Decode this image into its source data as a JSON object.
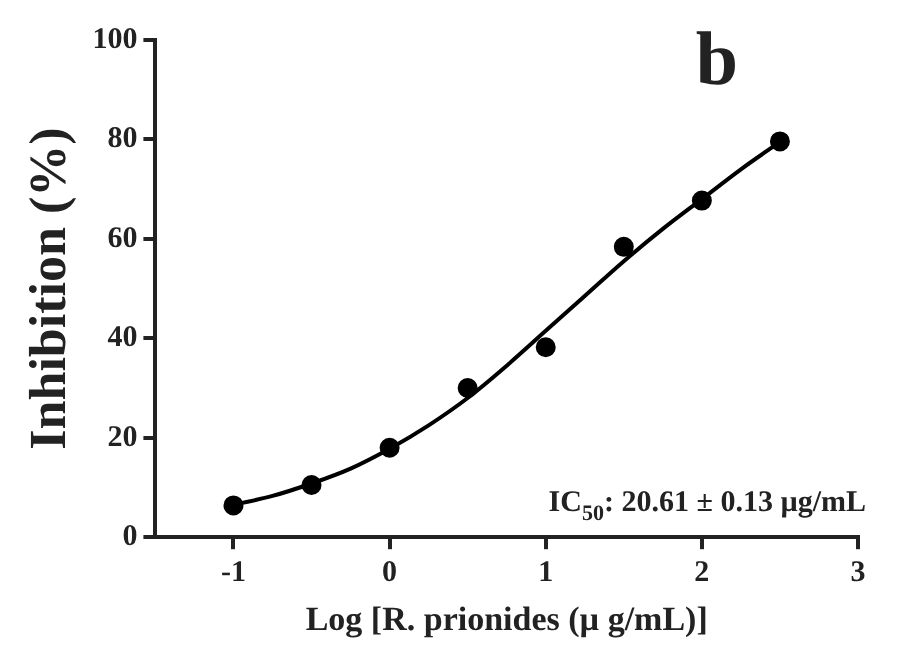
{
  "chart_data": {
    "type": "scatter",
    "xlabel": "Log [R. prionides (µ g/mL)]",
    "ylabel": "Inhibition (%)",
    "xlim": [
      -1.5,
      3
    ],
    "xticks": [
      -1,
      0,
      1,
      2,
      3
    ],
    "ylim": [
      0,
      100
    ],
    "yticks": [
      0,
      20,
      40,
      60,
      80,
      100
    ],
    "grid": false,
    "legend": false,
    "marker": "circle",
    "annotations": [
      "b",
      "IC$_{50}$: 20.61 ± 0.13 µg/mL"
    ],
    "series": [
      {
        "type": "scatter",
        "color": "#000000",
        "x": [
          -1,
          -0.5,
          0,
          0.5,
          1,
          1.5,
          2,
          2.5
        ],
        "values": [
          6.4,
          10.5,
          18,
          30,
          38.2,
          58.4,
          67.7,
          79.6
        ]
      },
      {
        "type": "line",
        "color": "#000000",
        "marker": "none",
        "x": [
          -1,
          -0.75,
          -0.5,
          -0.25,
          0,
          0.25,
          0.5,
          0.75,
          1,
          1.25,
          1.5,
          1.75,
          2,
          2.25,
          2.5
        ],
        "values": [
          6.5,
          8.3,
          10.8,
          13.8,
          17.8,
          22.5,
          28,
          34.5,
          41.5,
          48.5,
          55.5,
          62,
          68,
          74,
          79.5
        ]
      }
    ]
  }
}
